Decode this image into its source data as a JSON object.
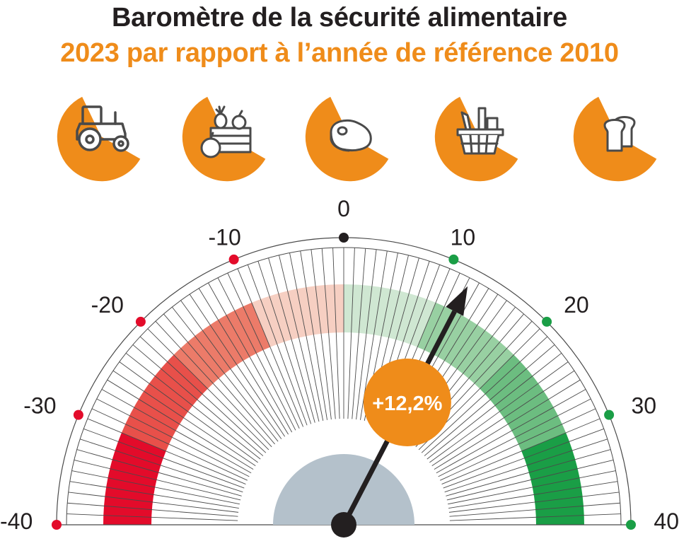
{
  "header": {
    "title": "Baromètre de la sécurité alimentaire",
    "subtitle": "2023 par rapport à l’année de référence 2010"
  },
  "icons": [
    {
      "name": "tractor-icon"
    },
    {
      "name": "fruit-vegetable-crate-icon"
    },
    {
      "name": "meat-steak-icon"
    },
    {
      "name": "grocery-basket-icon"
    },
    {
      "name": "bread-icon"
    }
  ],
  "colors": {
    "accent": "#ef8c1a",
    "negative_markers": "#e30b2a",
    "positive_markers": "#1a9e46",
    "zero_marker": "#231f20",
    "hub": "#b4c1cb",
    "needle": "#231f20",
    "negative_bands": [
      "#e30b2a",
      "#e8504a",
      "#ec7b69",
      "#f6cfc2"
    ],
    "positive_bands": [
      "#cfe7d2",
      "#98d0a2",
      "#6cbd80",
      "#1a9e46"
    ]
  },
  "chart_data": {
    "type": "gauge",
    "min": -40,
    "max": 40,
    "value": 12.2,
    "value_label": "+12,2%",
    "tick_labels": [
      {
        "value": -40,
        "label": "-40"
      },
      {
        "value": -30,
        "label": "-30"
      },
      {
        "value": -20,
        "label": "-20"
      },
      {
        "value": -10,
        "label": "-10"
      },
      {
        "value": 0,
        "label": "0"
      },
      {
        "value": 10,
        "label": "10"
      },
      {
        "value": 20,
        "label": "20"
      },
      {
        "value": 30,
        "label": "30"
      },
      {
        "value": 40,
        "label": "40"
      }
    ],
    "bands": [
      {
        "from": -40,
        "to": -30,
        "color": "#e30b2a"
      },
      {
        "from": -30,
        "to": -20,
        "color": "#e8504a"
      },
      {
        "from": -20,
        "to": -10,
        "color": "#ec7b69"
      },
      {
        "from": -10,
        "to": 0,
        "color": "#f6cfc2"
      },
      {
        "from": 0,
        "to": 10,
        "color": "#cfe7d2"
      },
      {
        "from": 10,
        "to": 20,
        "color": "#98d0a2"
      },
      {
        "from": 20,
        "to": 30,
        "color": "#6cbd80"
      },
      {
        "from": 30,
        "to": 40,
        "color": "#1a9e46"
      }
    ]
  }
}
